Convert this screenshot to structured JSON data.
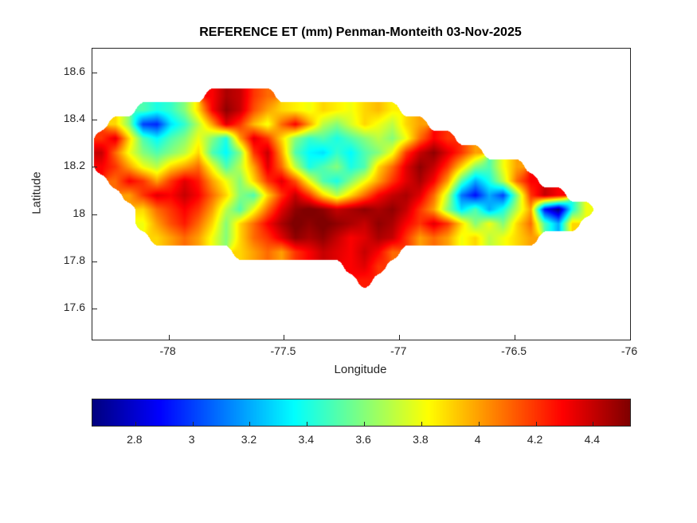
{
  "chart_data": {
    "type": "heatmap",
    "title": "REFERENCE ET (mm) Penman-Monteith 03-Nov-2025",
    "xlabel": "Longitude",
    "ylabel": "Latitude",
    "xlim": [
      -78.33,
      -76.0
    ],
    "ylim": [
      17.47,
      18.7
    ],
    "xticks": [
      -78,
      -77.5,
      -77,
      -76.5,
      -76
    ],
    "xtick_labels": [
      "-78",
      "-77.5",
      "-77",
      "-76.5",
      "-76"
    ],
    "yticks": [
      18.6,
      18.4,
      18.2,
      18,
      17.8,
      17.6
    ],
    "ytick_labels": [
      "18.6",
      "18.4",
      "18.2",
      "18",
      "17.8",
      "17.6"
    ],
    "colormap": "jet",
    "clim": [
      2.65,
      4.53
    ],
    "grid_on": false,
    "colorbar": {
      "orientation": "horizontal",
      "ticks": [
        2.8,
        3,
        3.2,
        3.4,
        3.6,
        3.8,
        4,
        4.2,
        4.4
      ],
      "tick_labels": [
        "2.8",
        "3",
        "3.2",
        "3.4",
        "3.6",
        "3.8",
        "4",
        "4.2",
        "4.4"
      ]
    },
    "grid": {
      "lon_start": -78.29,
      "lon_step": 0.06,
      "lat_start": 18.5,
      "lat_step": -0.06,
      "values": [
        [
          null,
          null,
          null,
          null,
          null,
          null,
          null,
          null,
          4.3,
          4.45,
          4.4,
          4.2,
          4.1,
          null,
          null,
          null,
          null,
          null,
          null,
          null,
          null,
          null,
          null,
          null,
          null,
          null,
          null,
          null,
          null,
          null,
          null,
          null,
          null,
          null,
          null,
          null
        ],
        [
          null,
          null,
          null,
          3.5,
          3.4,
          3.45,
          3.6,
          3.9,
          4.3,
          4.5,
          4.4,
          4.15,
          4.0,
          3.9,
          3.85,
          3.8,
          3.9,
          3.85,
          3.8,
          3.9,
          3.95,
          3.85,
          null,
          null,
          null,
          null,
          null,
          null,
          null,
          null,
          null,
          null,
          null,
          null,
          null,
          null
        ],
        [
          null,
          3.9,
          3.6,
          3.0,
          2.95,
          3.3,
          3.45,
          3.7,
          4.0,
          4.35,
          4.2,
          3.95,
          3.8,
          4.1,
          4.3,
          4.0,
          3.7,
          3.6,
          3.75,
          3.9,
          3.8,
          3.7,
          3.9,
          4.0,
          null,
          null,
          null,
          null,
          null,
          null,
          null,
          null,
          null,
          null,
          null,
          null
        ],
        [
          4.2,
          4.35,
          3.9,
          3.5,
          3.35,
          3.5,
          3.6,
          3.8,
          3.6,
          3.4,
          4.0,
          4.35,
          4.2,
          3.9,
          3.6,
          3.45,
          3.5,
          3.4,
          3.5,
          3.6,
          3.7,
          3.6,
          3.8,
          4.1,
          4.3,
          4.2,
          null,
          null,
          null,
          null,
          null,
          null,
          null,
          null,
          null,
          null
        ],
        [
          4.4,
          4.1,
          3.8,
          3.6,
          3.5,
          3.6,
          3.7,
          3.9,
          3.5,
          3.35,
          3.6,
          4.2,
          4.4,
          4.0,
          3.5,
          3.35,
          3.3,
          3.45,
          3.35,
          3.5,
          3.6,
          3.8,
          4.2,
          4.4,
          4.5,
          4.35,
          4.2,
          4.0,
          null,
          null,
          null,
          null,
          null,
          null,
          null,
          null
        ],
        [
          4.3,
          4.2,
          4.0,
          3.8,
          3.7,
          3.9,
          4.0,
          4.1,
          3.8,
          3.5,
          3.7,
          4.0,
          4.35,
          4.1,
          3.7,
          3.4,
          3.5,
          3.6,
          3.4,
          3.5,
          3.9,
          4.1,
          4.35,
          4.5,
          4.4,
          4.2,
          3.9,
          3.6,
          3.5,
          3.8,
          4.0,
          null,
          null,
          null,
          null,
          null
        ],
        [
          null,
          4.1,
          4.3,
          4.2,
          4.0,
          4.2,
          4.35,
          4.25,
          4.0,
          3.8,
          3.6,
          3.9,
          4.2,
          4.35,
          4.15,
          3.8,
          3.5,
          3.4,
          3.6,
          3.8,
          4.0,
          4.2,
          4.35,
          4.45,
          4.3,
          4.0,
          3.5,
          3.2,
          3.4,
          3.7,
          4.1,
          4.3,
          null,
          null,
          null,
          null
        ],
        [
          null,
          null,
          4.0,
          4.2,
          4.35,
          4.3,
          4.4,
          4.3,
          4.1,
          3.9,
          3.6,
          3.5,
          3.9,
          4.2,
          4.4,
          4.2,
          3.9,
          3.7,
          3.9,
          4.1,
          4.3,
          4.4,
          4.45,
          4.35,
          4.1,
          3.7,
          3.1,
          2.9,
          3.2,
          3.0,
          3.6,
          4.2,
          4.4,
          4.3,
          null,
          null
        ],
        [
          null,
          null,
          null,
          3.9,
          4.1,
          4.2,
          4.3,
          4.2,
          4.0,
          3.7,
          3.5,
          3.8,
          4.1,
          4.35,
          4.5,
          4.55,
          4.5,
          4.4,
          4.45,
          4.5,
          4.45,
          4.5,
          4.4,
          4.2,
          4.0,
          3.6,
          3.3,
          3.5,
          3.2,
          3.4,
          3.7,
          4.0,
          2.9,
          2.65,
          3.4,
          3.8
        ],
        [
          null,
          null,
          null,
          3.8,
          4.0,
          4.15,
          4.25,
          4.1,
          3.9,
          3.6,
          3.9,
          4.1,
          4.3,
          4.45,
          4.55,
          4.5,
          4.55,
          4.5,
          4.45,
          4.4,
          4.5,
          4.45,
          4.3,
          4.2,
          4.35,
          4.2,
          3.9,
          3.6,
          3.8,
          3.6,
          3.9,
          4.1,
          3.5,
          3.2,
          3.9,
          null
        ],
        [
          null,
          null,
          null,
          null,
          3.9,
          4.0,
          4.1,
          4.0,
          3.8,
          3.6,
          3.9,
          4.1,
          4.2,
          4.35,
          4.5,
          4.45,
          4.5,
          4.4,
          4.3,
          4.35,
          4.45,
          4.4,
          4.2,
          4.0,
          4.1,
          4.0,
          3.8,
          3.9,
          3.7,
          3.8,
          3.9,
          4.0,
          null,
          null,
          null,
          null
        ],
        [
          null,
          null,
          null,
          null,
          null,
          null,
          null,
          null,
          null,
          null,
          3.9,
          4.0,
          4.1,
          4.0,
          4.2,
          4.3,
          4.4,
          4.35,
          4.3,
          4.4,
          4.3,
          4.1,
          null,
          null,
          null,
          null,
          null,
          null,
          null,
          null,
          null,
          null,
          null,
          null,
          null,
          null
        ],
        [
          null,
          null,
          null,
          null,
          null,
          null,
          null,
          null,
          null,
          null,
          null,
          null,
          null,
          null,
          null,
          null,
          null,
          null,
          4.3,
          4.35,
          4.2,
          null,
          null,
          null,
          null,
          null,
          null,
          null,
          null,
          null,
          null,
          null,
          null,
          null,
          null,
          null
        ],
        [
          null,
          null,
          null,
          null,
          null,
          null,
          null,
          null,
          null,
          null,
          null,
          null,
          null,
          null,
          null,
          null,
          null,
          null,
          null,
          4.25,
          null,
          null,
          null,
          null,
          null,
          null,
          null,
          null,
          null,
          null,
          null,
          null,
          null,
          null,
          null,
          null
        ]
      ]
    }
  }
}
